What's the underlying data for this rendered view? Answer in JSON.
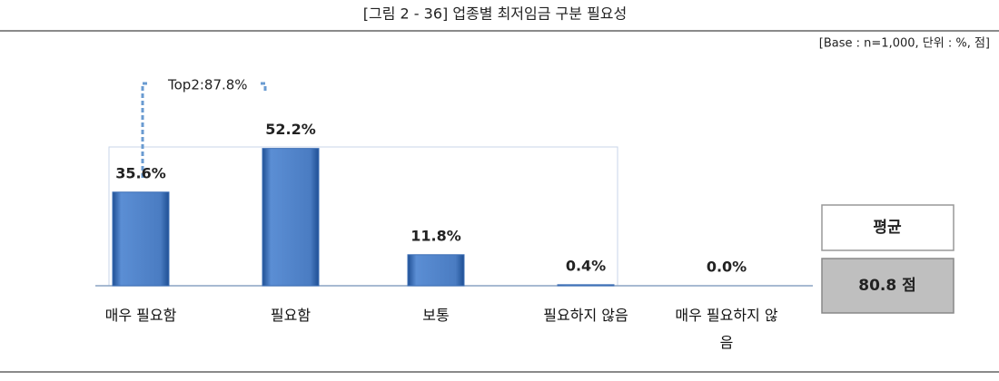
{
  "chart_data": {
    "type": "bar",
    "title": "[그림 2 - 36] 업종별 최저임금 구분 필요성",
    "subtitle": "[Base : n=1,000, 단위 : %, 점]",
    "categories": [
      "매우 필요함",
      "필요함",
      "보통",
      "필요하지 않음",
      "매우 필요하지 않음"
    ],
    "values": [
      35.6,
      52.2,
      11.8,
      0.4,
      0.0
    ],
    "value_labels": [
      "35.6%",
      "52.2%",
      "11.8%",
      "0.4%",
      "0.0%"
    ],
    "color": "#3d6fb6",
    "annotation": "Top2:87.8%",
    "mean": {
      "label": "평균",
      "value": 80.8,
      "value_label": "80.8 점"
    }
  }
}
